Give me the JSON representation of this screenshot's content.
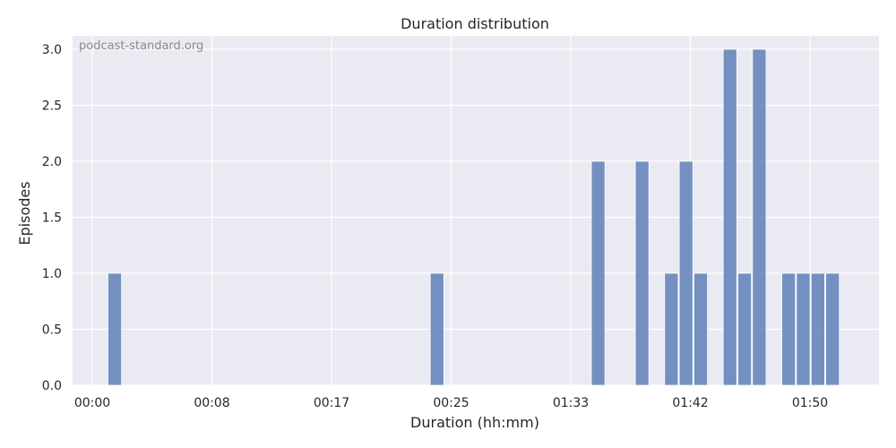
{
  "chart_data": {
    "type": "bar",
    "title": "Duration distribution",
    "xlabel": "Duration (hh:mm)",
    "ylabel": "Episodes",
    "watermark": "podcast-standard.org",
    "grid": true,
    "ylim": [
      0,
      3.12
    ],
    "x_tick_labels": [
      "00:00",
      "00:08",
      "00:17",
      "00:25",
      "01:33",
      "01:42",
      "01:50"
    ],
    "y_ticks": [
      "0.0",
      "0.5",
      "1.0",
      "1.5",
      "2.0",
      "2.5",
      "3.0"
    ],
    "bar_color": "#4c72b0",
    "bins": [
      {
        "bin": 1,
        "value": 1
      },
      {
        "bin": 23,
        "value": 1
      },
      {
        "bin": 34,
        "value": 2
      },
      {
        "bin": 37,
        "value": 2
      },
      {
        "bin": 39,
        "value": 1
      },
      {
        "bin": 40,
        "value": 2
      },
      {
        "bin": 41,
        "value": 1
      },
      {
        "bin": 43,
        "value": 3
      },
      {
        "bin": 44,
        "value": 1
      },
      {
        "bin": 45,
        "value": 3
      },
      {
        "bin": 47,
        "value": 1
      },
      {
        "bin": 48,
        "value": 1
      },
      {
        "bin": 49,
        "value": 1
      },
      {
        "bin": 50,
        "value": 1
      }
    ]
  }
}
